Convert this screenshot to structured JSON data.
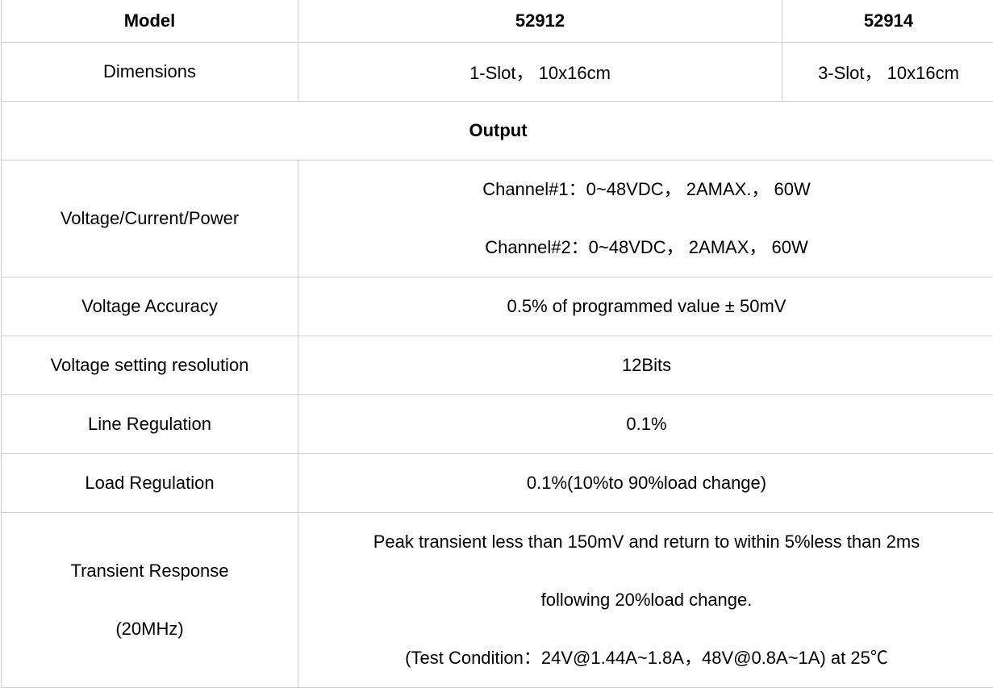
{
  "table": {
    "header": {
      "label": "Model",
      "models": [
        "52912",
        "52914"
      ]
    },
    "dimensions": {
      "label": "Dimensions",
      "values": [
        "1-Slot， 10x16cm",
        "3-Slot， 10x16cm"
      ]
    },
    "section": "Output",
    "rows": [
      {
        "label": "Voltage/Current/Power",
        "lines": [
          "Channel#1：0~48VDC， 2AMAX.， 60W",
          "Channel#2：0~48VDC， 2AMAX， 60W"
        ]
      },
      {
        "label": "Voltage Accuracy",
        "value": "0.5% of programmed value ± 50mV"
      },
      {
        "label": "Voltage setting resolution",
        "value": "12Bits"
      },
      {
        "label": "Line Regulation",
        "value": "0.1%"
      },
      {
        "label": "Load Regulation",
        "value": "0.1%(10%to 90%load change)"
      },
      {
        "label_lines": [
          "Transient Response",
          "(20MHz)"
        ],
        "lines": [
          "Peak transient less than 150mV and return to within 5%less than 2ms",
          "following 20%load change.",
          "(Test Condition：24V@1.44A~1.8A，48V@0.8A~1A) at 25℃"
        ]
      }
    ]
  }
}
